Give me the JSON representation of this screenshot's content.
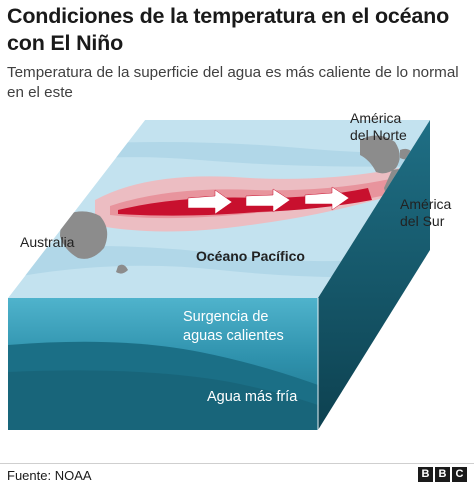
{
  "header": {
    "title": "Condiciones de la temperatura en el océano con El Niño",
    "subtitle": "Temperatura de la superficie del agua es más caliente de lo normal en el este"
  },
  "labels": {
    "north_america": "América del Norte",
    "south_america": "América del Sur",
    "australia": "Australia",
    "pacific": "Océano Pacífico",
    "upwelling": "Surgencia de aguas calientes",
    "cold_water": "Agua más fría"
  },
  "footer": {
    "source": "Fuente: NOAA",
    "logo": "BBC"
  },
  "colors": {
    "warm_core": "#c8102e",
    "warm_band": "#f1b9bd",
    "surface": "#a9d3e6",
    "upwelling": "#3aa3bf",
    "deep": "#1b6f86",
    "side_dark": "#0f4c5c",
    "land": "#8c8c8c"
  }
}
